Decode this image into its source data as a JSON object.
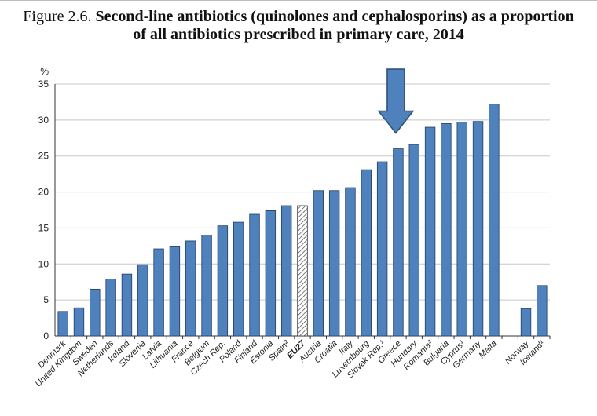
{
  "title": {
    "figure_label": "Figure 2.6.",
    "line1": "Second-line antibiotics (quinolones and cephalosporins) as a proportion",
    "line2": "of all antibiotics prescribed in primary care, 2014"
  },
  "chart_data": {
    "type": "bar",
    "ylabel": "%",
    "ylim": [
      0,
      35
    ],
    "yticks": [
      "0",
      "5",
      "10",
      "15",
      "20",
      "25",
      "30",
      "35"
    ],
    "grid": true,
    "categories": [
      "Denmark",
      "United Kingdom",
      "Sweden",
      "Netherlands",
      "Ireland",
      "Slovenia",
      "Latvia",
      "Lithuania",
      "France",
      "Belgium",
      "Czech Rep.",
      "Poland",
      "Finland",
      "Estonia",
      "Spain²",
      "EU27",
      "Austria",
      "Croatia",
      "Italy",
      "Luxembourg",
      "Slovak Rep.¹",
      "Greece",
      "Hungary",
      "Romania²",
      "Bulgaria",
      "Cyprus¹",
      "Germany",
      "Malta",
      "",
      "Norway",
      "Iceland¹"
    ],
    "values": [
      3.4,
      3.9,
      6.5,
      7.9,
      8.6,
      9.9,
      12.1,
      12.4,
      13.2,
      14.0,
      15.3,
      15.8,
      16.9,
      17.4,
      18.1,
      18.1,
      20.2,
      20.2,
      20.6,
      23.1,
      24.2,
      26.0,
      26.6,
      29.0,
      29.5,
      29.7,
      29.8,
      32.2,
      null,
      3.8,
      7.0
    ],
    "highlight": "EU27",
    "colors": {
      "bar": "#4f81bd",
      "bar_edge": "#1f3f66",
      "grid": "#c8c8c8",
      "arrow": "#4f81bd",
      "arrow_edge": "#2c4d75"
    },
    "annotation": {
      "type": "arrow-down",
      "target": "Greece"
    }
  }
}
